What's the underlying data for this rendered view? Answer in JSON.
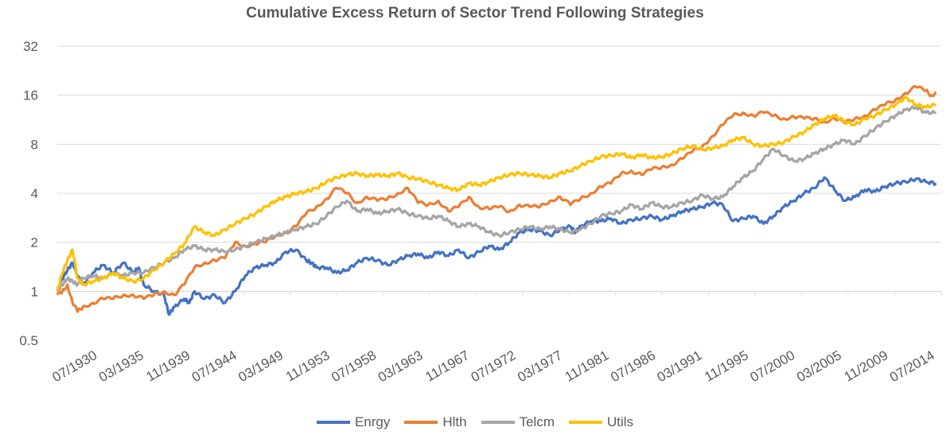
{
  "chart_data": {
    "type": "line",
    "title": "Cumulative Excess Return of Sector Trend Following Strategies",
    "xlabel": "",
    "ylabel": "",
    "y_scale": "log2",
    "ylim": [
      0.5,
      32
    ],
    "y_ticks": [
      "0.5",
      "1",
      "2",
      "4",
      "8",
      "16",
      "32"
    ],
    "x_tick_labels": [
      "07/1930",
      "03/1935",
      "11/1939",
      "07/1944",
      "03/1949",
      "11/1953",
      "07/1958",
      "03/1963",
      "11/1967",
      "07/1972",
      "03/1977",
      "11/1981",
      "07/1986",
      "03/1991",
      "11/1995",
      "07/2000",
      "03/2005",
      "11/2009",
      "07/2014"
    ],
    "x_range": [
      1930.5,
      2017.5
    ],
    "grid": "horizontal",
    "legend_position": "bottom",
    "series": [
      {
        "name": "Enrgy",
        "color": "#4472C4",
        "x": [
          1930.5,
          1931.0,
          1931.5,
          1932.0,
          1932.5,
          1933.0,
          1934.0,
          1935.0,
          1936.0,
          1937.0,
          1938.0,
          1938.5,
          1939.0,
          1940.0,
          1941.0,
          1941.5,
          1942.0,
          1943.0,
          1943.5,
          1944.0,
          1945.0,
          1946.0,
          1947.0,
          1948.0,
          1949.0,
          1950.0,
          1951.0,
          1952.0,
          1953.0,
          1954.0,
          1955.0,
          1955.5,
          1956.0,
          1957.0,
          1958.0,
          1959.0,
          1960.0,
          1961.0,
          1962.0,
          1963.0,
          1964.0,
          1965.0,
          1966.0,
          1967.0,
          1968.0,
          1969.0,
          1970.0,
          1971.0,
          1972.0,
          1973.0,
          1974.0,
          1975.0,
          1976.0,
          1977.0,
          1978.0,
          1979.0,
          1980.0,
          1981.0,
          1981.5,
          1982.0,
          1983.0,
          1984.0,
          1985.0,
          1986.0,
          1987.0,
          1988.0,
          1989.0,
          1990.0,
          1991.0,
          1992.0,
          1993.0,
          1994.0,
          1995.0,
          1996.0,
          1997.0,
          1998.0,
          1999.0,
          2000.0,
          2001.0,
          2002.0,
          2003.0,
          2004.0,
          2005.0,
          2006.0,
          2007.0,
          2008.0,
          2009.0,
          2010.0,
          2011.0,
          2012.0,
          2013.0,
          2014.0,
          2015.0,
          2016.0,
          2017.0
        ],
        "values": [
          1.0,
          1.2,
          1.35,
          1.5,
          1.25,
          1.1,
          1.3,
          1.45,
          1.3,
          1.5,
          1.3,
          1.4,
          1.1,
          1.0,
          0.95,
          0.72,
          0.8,
          0.9,
          0.85,
          1.0,
          0.9,
          0.95,
          0.85,
          1.0,
          1.25,
          1.4,
          1.45,
          1.5,
          1.75,
          1.8,
          1.55,
          1.5,
          1.4,
          1.4,
          1.3,
          1.35,
          1.5,
          1.6,
          1.55,
          1.45,
          1.55,
          1.65,
          1.7,
          1.6,
          1.75,
          1.65,
          1.8,
          1.6,
          1.75,
          1.9,
          1.8,
          2.0,
          2.3,
          2.4,
          2.35,
          2.2,
          2.4,
          2.5,
          2.3,
          2.5,
          2.7,
          2.7,
          2.8,
          2.6,
          2.75,
          2.8,
          2.9,
          2.75,
          2.9,
          3.1,
          3.2,
          3.3,
          3.5,
          3.4,
          2.7,
          2.8,
          2.9,
          2.6,
          2.9,
          3.3,
          3.6,
          4.0,
          4.3,
          5.0,
          4.2,
          3.6,
          3.8,
          4.2,
          4.1,
          4.4,
          4.6,
          4.7,
          4.9,
          4.7,
          4.6
        ]
      },
      {
        "name": "Hlth",
        "color": "#ED7D31",
        "x": [
          1930.5,
          1931.0,
          1931.5,
          1932.0,
          1932.5,
          1933.0,
          1934.0,
          1935.0,
          1936.0,
          1937.0,
          1938.0,
          1939.0,
          1940.0,
          1941.0,
          1942.0,
          1943.0,
          1944.0,
          1945.0,
          1946.0,
          1947.0,
          1948.0,
          1949.0,
          1950.0,
          1951.0,
          1952.0,
          1953.0,
          1954.0,
          1955.0,
          1956.0,
          1957.0,
          1958.0,
          1959.0,
          1960.0,
          1961.0,
          1962.0,
          1963.0,
          1964.0,
          1965.0,
          1966.0,
          1967.0,
          1968.0,
          1969.0,
          1970.0,
          1971.0,
          1972.0,
          1973.0,
          1974.0,
          1975.0,
          1976.0,
          1977.0,
          1978.0,
          1979.0,
          1980.0,
          1981.0,
          1982.0,
          1983.0,
          1984.0,
          1985.0,
          1986.0,
          1987.0,
          1988.0,
          1989.0,
          1990.0,
          1991.0,
          1992.0,
          1993.0,
          1994.0,
          1995.0,
          1996.0,
          1997.0,
          1998.0,
          1999.0,
          2000.0,
          2001.0,
          2002.0,
          2003.0,
          2004.0,
          2005.0,
          2006.0,
          2007.0,
          2008.0,
          2009.0,
          2010.0,
          2011.0,
          2012.0,
          2013.0,
          2014.0,
          2015.0,
          2016.0,
          2016.5,
          2017.0
        ],
        "values": [
          0.95,
          1.0,
          1.1,
          0.85,
          0.75,
          0.8,
          0.85,
          0.9,
          0.9,
          0.95,
          0.95,
          0.9,
          0.95,
          1.0,
          0.95,
          1.1,
          1.4,
          1.5,
          1.55,
          1.6,
          2.0,
          1.9,
          1.95,
          2.0,
          2.2,
          2.3,
          2.5,
          3.0,
          3.3,
          3.7,
          4.3,
          4.0,
          3.5,
          3.8,
          3.6,
          3.7,
          4.0,
          4.3,
          3.5,
          3.4,
          3.6,
          3.1,
          3.3,
          3.8,
          3.3,
          3.2,
          3.3,
          3.1,
          3.4,
          3.3,
          3.3,
          3.6,
          3.8,
          3.4,
          3.7,
          4.0,
          4.4,
          4.6,
          5.3,
          5.5,
          5.2,
          5.6,
          5.8,
          6.0,
          6.5,
          7.2,
          7.8,
          9.0,
          10.5,
          12.0,
          12.5,
          12.0,
          12.5,
          12.0,
          11.5,
          11.8,
          11.5,
          11.5,
          11.0,
          11.5,
          10.8,
          11.5,
          12.0,
          13.0,
          14.0,
          15.0,
          16.5,
          18.0,
          17.0,
          16.0,
          16.5
        ]
      },
      {
        "name": "Telcm",
        "color": "#A5A5A5",
        "x": [
          1930.5,
          1931.0,
          1931.5,
          1932.0,
          1932.5,
          1933.0,
          1934.0,
          1935.0,
          1936.0,
          1937.0,
          1938.0,
          1939.0,
          1940.0,
          1941.0,
          1942.0,
          1943.0,
          1944.0,
          1945.0,
          1946.0,
          1947.0,
          1948.0,
          1949.0,
          1950.0,
          1951.0,
          1952.0,
          1953.0,
          1954.0,
          1955.0,
          1956.0,
          1957.0,
          1958.0,
          1959.0,
          1960.0,
          1961.0,
          1962.0,
          1963.0,
          1964.0,
          1965.0,
          1966.0,
          1967.0,
          1968.0,
          1969.0,
          1970.0,
          1971.0,
          1972.0,
          1973.0,
          1974.0,
          1975.0,
          1976.0,
          1977.0,
          1978.0,
          1979.0,
          1980.0,
          1981.0,
          1982.0,
          1983.0,
          1984.0,
          1985.0,
          1986.0,
          1987.0,
          1988.0,
          1989.0,
          1990.0,
          1991.0,
          1992.0,
          1993.0,
          1994.0,
          1995.0,
          1996.0,
          1997.0,
          1998.0,
          1999.0,
          2000.0,
          2001.0,
          2002.0,
          2003.0,
          2004.0,
          2005.0,
          2006.0,
          2007.0,
          2008.0,
          2009.0,
          2010.0,
          2011.0,
          2012.0,
          2013.0,
          2014.0,
          2015.0,
          2016.0,
          2017.0
        ],
        "values": [
          1.0,
          1.1,
          1.2,
          1.15,
          1.1,
          1.2,
          1.25,
          1.2,
          1.3,
          1.25,
          1.3,
          1.3,
          1.4,
          1.5,
          1.6,
          1.8,
          1.9,
          1.8,
          1.8,
          1.75,
          1.8,
          1.9,
          2.0,
          2.1,
          2.2,
          2.3,
          2.4,
          2.5,
          2.6,
          2.9,
          3.3,
          3.6,
          3.1,
          3.2,
          3.0,
          3.1,
          3.2,
          3.0,
          2.9,
          2.8,
          2.9,
          2.7,
          2.5,
          2.6,
          2.5,
          2.3,
          2.2,
          2.3,
          2.4,
          2.5,
          2.4,
          2.5,
          2.4,
          2.3,
          2.4,
          2.6,
          2.9,
          3.0,
          3.1,
          3.4,
          3.2,
          3.5,
          3.3,
          3.3,
          3.5,
          3.6,
          3.9,
          3.7,
          3.8,
          4.4,
          5.0,
          5.5,
          6.5,
          7.5,
          6.8,
          6.3,
          6.5,
          7.0,
          7.5,
          8.0,
          8.5,
          8.0,
          9.0,
          10.0,
          11.0,
          12.0,
          13.0,
          13.5,
          12.5,
          12.5
        ]
      },
      {
        "name": "Utils",
        "color": "#FFC000",
        "x": [
          1930.5,
          1931.0,
          1931.5,
          1932.0,
          1932.5,
          1933.0,
          1934.0,
          1935.0,
          1936.0,
          1937.0,
          1938.0,
          1939.0,
          1940.0,
          1941.0,
          1942.0,
          1943.0,
          1944.0,
          1945.0,
          1946.0,
          1947.0,
          1948.0,
          1949.0,
          1950.0,
          1951.0,
          1952.0,
          1953.0,
          1954.0,
          1955.0,
          1956.0,
          1957.0,
          1958.0,
          1959.0,
          1960.0,
          1961.0,
          1962.0,
          1963.0,
          1964.0,
          1965.0,
          1966.0,
          1967.0,
          1968.0,
          1969.0,
          1970.0,
          1971.0,
          1972.0,
          1973.0,
          1974.0,
          1975.0,
          1976.0,
          1977.0,
          1978.0,
          1979.0,
          1980.0,
          1981.0,
          1982.0,
          1983.0,
          1984.0,
          1985.0,
          1986.0,
          1987.0,
          1988.0,
          1989.0,
          1990.0,
          1991.0,
          1992.0,
          1993.0,
          1994.0,
          1995.0,
          1996.0,
          1997.0,
          1998.0,
          1999.0,
          2000.0,
          2001.0,
          2002.0,
          2003.0,
          2004.0,
          2005.0,
          2006.0,
          2007.0,
          2008.0,
          2009.0,
          2010.0,
          2011.0,
          2012.0,
          2013.0,
          2014.0,
          2015.0,
          2016.0,
          2017.0
        ],
        "values": [
          1.0,
          1.3,
          1.55,
          1.8,
          1.2,
          1.1,
          1.15,
          1.2,
          1.3,
          1.2,
          1.15,
          1.2,
          1.35,
          1.5,
          1.7,
          1.95,
          2.5,
          2.3,
          2.2,
          2.4,
          2.6,
          2.8,
          3.0,
          3.3,
          3.6,
          3.8,
          4.0,
          4.1,
          4.3,
          4.7,
          5.0,
          5.2,
          5.3,
          5.1,
          5.2,
          5.1,
          5.3,
          5.0,
          4.9,
          4.7,
          4.5,
          4.3,
          4.2,
          4.6,
          4.5,
          4.7,
          5.0,
          5.2,
          5.3,
          5.2,
          5.1,
          5.0,
          5.3,
          5.5,
          5.9,
          6.3,
          6.7,
          6.8,
          7.0,
          6.6,
          6.9,
          6.6,
          6.7,
          7.0,
          7.5,
          7.8,
          7.4,
          7.6,
          7.8,
          8.5,
          8.8,
          8.0,
          7.8,
          8.0,
          8.2,
          8.9,
          9.5,
          10.5,
          11.5,
          12.0,
          11.0,
          10.5,
          11.5,
          12.0,
          13.0,
          14.0,
          15.5,
          14.0,
          13.5,
          14.0
        ]
      }
    ]
  }
}
